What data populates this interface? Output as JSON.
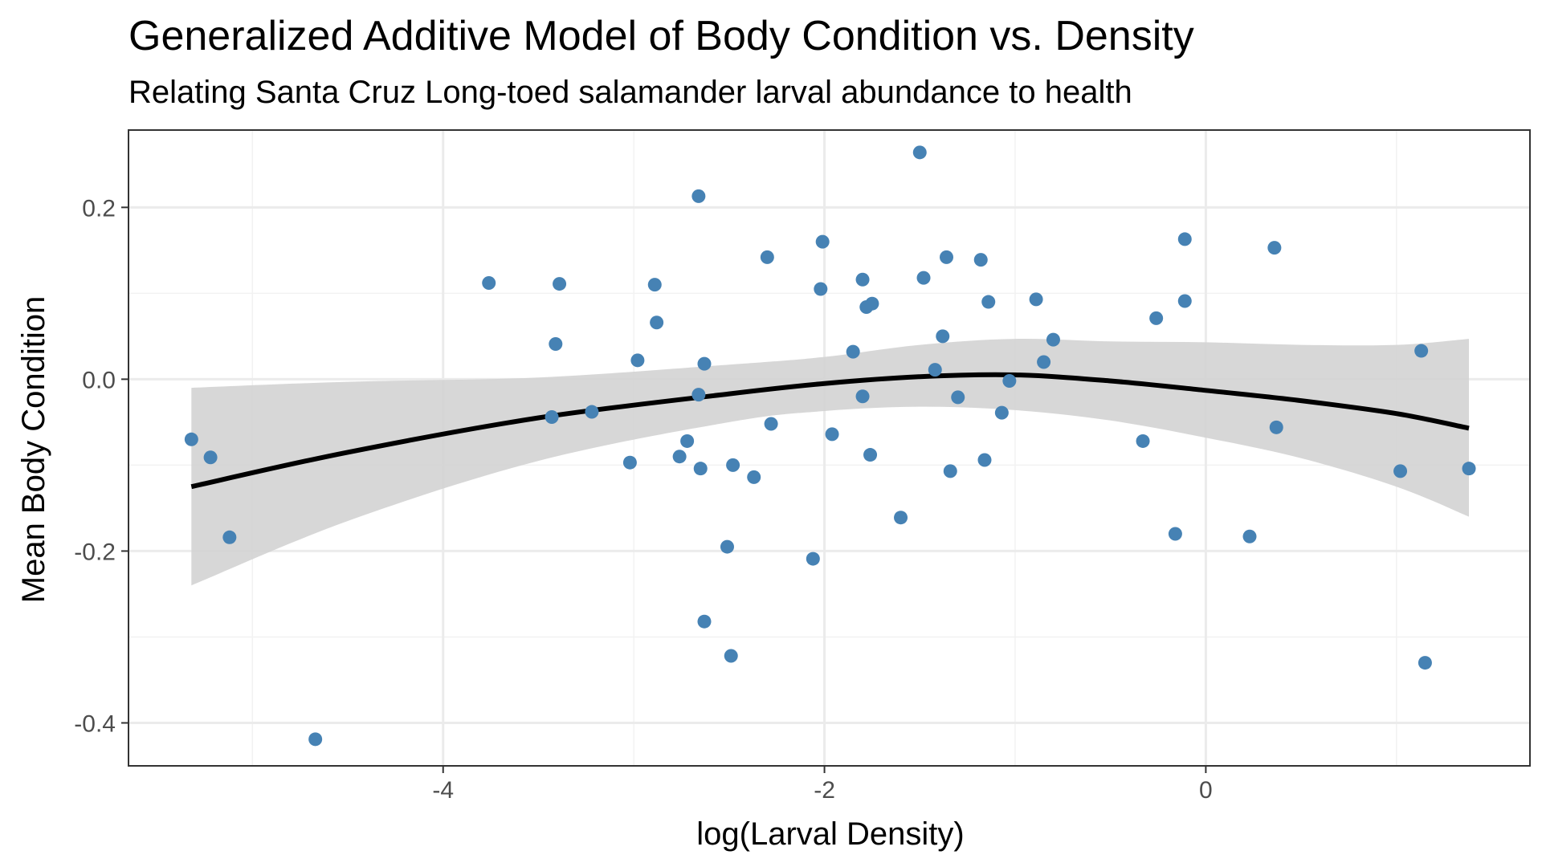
{
  "chart_data": {
    "type": "scatter",
    "title": "Generalized Additive Model of Body Condition vs. Density",
    "subtitle": "Relating Santa Cruz Long-toed salamander larval abundance to health",
    "xlabel": "log(Larval Density)",
    "ylabel": "Mean Body Condition",
    "xlim": [
      -5.65,
      1.7
    ],
    "ylim": [
      -0.45,
      0.29
    ],
    "x_ticks": [
      -4,
      -2,
      0
    ],
    "x_tick_labels": [
      "-4",
      "-2",
      "0"
    ],
    "y_ticks": [
      -0.4,
      -0.2,
      0.0,
      0.2
    ],
    "y_tick_labels": [
      "-0.4",
      "-0.2",
      "0.0",
      "0.2"
    ],
    "grid": true,
    "legend": "none",
    "colors": {
      "points": "#4682b4",
      "fit_line": "#000000",
      "confidence_band": "#d3d3d3",
      "grid_major": "#ebebeb",
      "grid_minor": "#f2f2f2",
      "panel_border": "#333333"
    },
    "points": [
      {
        "x": -5.32,
        "y": -0.07
      },
      {
        "x": -5.22,
        "y": -0.091
      },
      {
        "x": -5.12,
        "y": -0.184
      },
      {
        "x": -4.67,
        "y": -0.419
      },
      {
        "x": -3.76,
        "y": 0.112
      },
      {
        "x": -3.43,
        "y": -0.044
      },
      {
        "x": -3.41,
        "y": 0.041
      },
      {
        "x": -3.39,
        "y": 0.111
      },
      {
        "x": -3.22,
        "y": -0.038
      },
      {
        "x": -3.02,
        "y": -0.097
      },
      {
        "x": -2.98,
        "y": 0.022
      },
      {
        "x": -2.89,
        "y": 0.11
      },
      {
        "x": -2.88,
        "y": 0.066
      },
      {
        "x": -2.76,
        "y": -0.09
      },
      {
        "x": -2.72,
        "y": -0.072
      },
      {
        "x": -2.66,
        "y": 0.213
      },
      {
        "x": -2.66,
        "y": -0.018
      },
      {
        "x": -2.65,
        "y": -0.104
      },
      {
        "x": -2.63,
        "y": 0.018
      },
      {
        "x": -2.63,
        "y": -0.282
      },
      {
        "x": -2.51,
        "y": -0.195
      },
      {
        "x": -2.49,
        "y": -0.322
      },
      {
        "x": -2.48,
        "y": -0.1
      },
      {
        "x": -2.37,
        "y": -0.114
      },
      {
        "x": -2.3,
        "y": 0.142
      },
      {
        "x": -2.28,
        "y": -0.052
      },
      {
        "x": -2.06,
        "y": -0.209
      },
      {
        "x": -2.02,
        "y": 0.105
      },
      {
        "x": -2.01,
        "y": 0.16
      },
      {
        "x": -1.96,
        "y": -0.064
      },
      {
        "x": -1.85,
        "y": 0.032
      },
      {
        "x": -1.8,
        "y": 0.116
      },
      {
        "x": -1.8,
        "y": -0.02
      },
      {
        "x": -1.78,
        "y": 0.084
      },
      {
        "x": -1.76,
        "y": -0.088
      },
      {
        "x": -1.75,
        "y": 0.088
      },
      {
        "x": -1.6,
        "y": -0.161
      },
      {
        "x": -1.5,
        "y": 0.264
      },
      {
        "x": -1.48,
        "y": 0.118
      },
      {
        "x": -1.42,
        "y": 0.011
      },
      {
        "x": -1.38,
        "y": 0.05
      },
      {
        "x": -1.36,
        "y": 0.142
      },
      {
        "x": -1.34,
        "y": -0.107
      },
      {
        "x": -1.3,
        "y": -0.021
      },
      {
        "x": -1.18,
        "y": 0.139
      },
      {
        "x": -1.16,
        "y": -0.094
      },
      {
        "x": -1.14,
        "y": 0.09
      },
      {
        "x": -1.07,
        "y": -0.039
      },
      {
        "x": -1.03,
        "y": -0.002
      },
      {
        "x": -0.89,
        "y": 0.093
      },
      {
        "x": -0.85,
        "y": 0.02
      },
      {
        "x": -0.8,
        "y": 0.046
      },
      {
        "x": -0.33,
        "y": -0.072
      },
      {
        "x": -0.26,
        "y": 0.071
      },
      {
        "x": -0.16,
        "y": -0.18
      },
      {
        "x": -0.11,
        "y": 0.163
      },
      {
        "x": -0.11,
        "y": 0.091
      },
      {
        "x": 0.23,
        "y": -0.183
      },
      {
        "x": 0.36,
        "y": 0.153
      },
      {
        "x": 0.37,
        "y": -0.056
      },
      {
        "x": 1.02,
        "y": -0.107
      },
      {
        "x": 1.13,
        "y": 0.033
      },
      {
        "x": 1.15,
        "y": -0.33
      },
      {
        "x": 1.38,
        "y": -0.104
      }
    ],
    "fit_line": [
      {
        "x": -5.32,
        "y": -0.125
      },
      {
        "x": -4.5,
        "y": -0.085
      },
      {
        "x": -3.5,
        "y": -0.045
      },
      {
        "x": -2.5,
        "y": -0.017
      },
      {
        "x": -2.0,
        "y": -0.005
      },
      {
        "x": -1.5,
        "y": 0.003
      },
      {
        "x": -1.0,
        "y": 0.005
      },
      {
        "x": -0.5,
        "y": -0.002
      },
      {
        "x": 0.0,
        "y": -0.013
      },
      {
        "x": 0.5,
        "y": -0.025
      },
      {
        "x": 1.0,
        "y": -0.04
      },
      {
        "x": 1.38,
        "y": -0.057
      }
    ],
    "band_upper": [
      {
        "x": -5.32,
        "y": -0.01
      },
      {
        "x": -4.5,
        "y": -0.003
      },
      {
        "x": -3.5,
        "y": 0.002
      },
      {
        "x": -2.5,
        "y": 0.017
      },
      {
        "x": -2.0,
        "y": 0.026
      },
      {
        "x": -1.5,
        "y": 0.04
      },
      {
        "x": -1.0,
        "y": 0.047
      },
      {
        "x": -0.5,
        "y": 0.044
      },
      {
        "x": 0.0,
        "y": 0.043
      },
      {
        "x": 0.5,
        "y": 0.04
      },
      {
        "x": 1.0,
        "y": 0.04
      },
      {
        "x": 1.38,
        "y": 0.047
      }
    ],
    "band_lower": [
      {
        "x": -5.32,
        "y": -0.24
      },
      {
        "x": -4.5,
        "y": -0.165
      },
      {
        "x": -3.5,
        "y": -0.095
      },
      {
        "x": -2.5,
        "y": -0.05
      },
      {
        "x": -2.0,
        "y": -0.037
      },
      {
        "x": -1.5,
        "y": -0.032
      },
      {
        "x": -1.0,
        "y": -0.036
      },
      {
        "x": -0.5,
        "y": -0.048
      },
      {
        "x": 0.0,
        "y": -0.068
      },
      {
        "x": 0.5,
        "y": -0.092
      },
      {
        "x": 1.0,
        "y": -0.125
      },
      {
        "x": 1.38,
        "y": -0.16
      }
    ]
  }
}
